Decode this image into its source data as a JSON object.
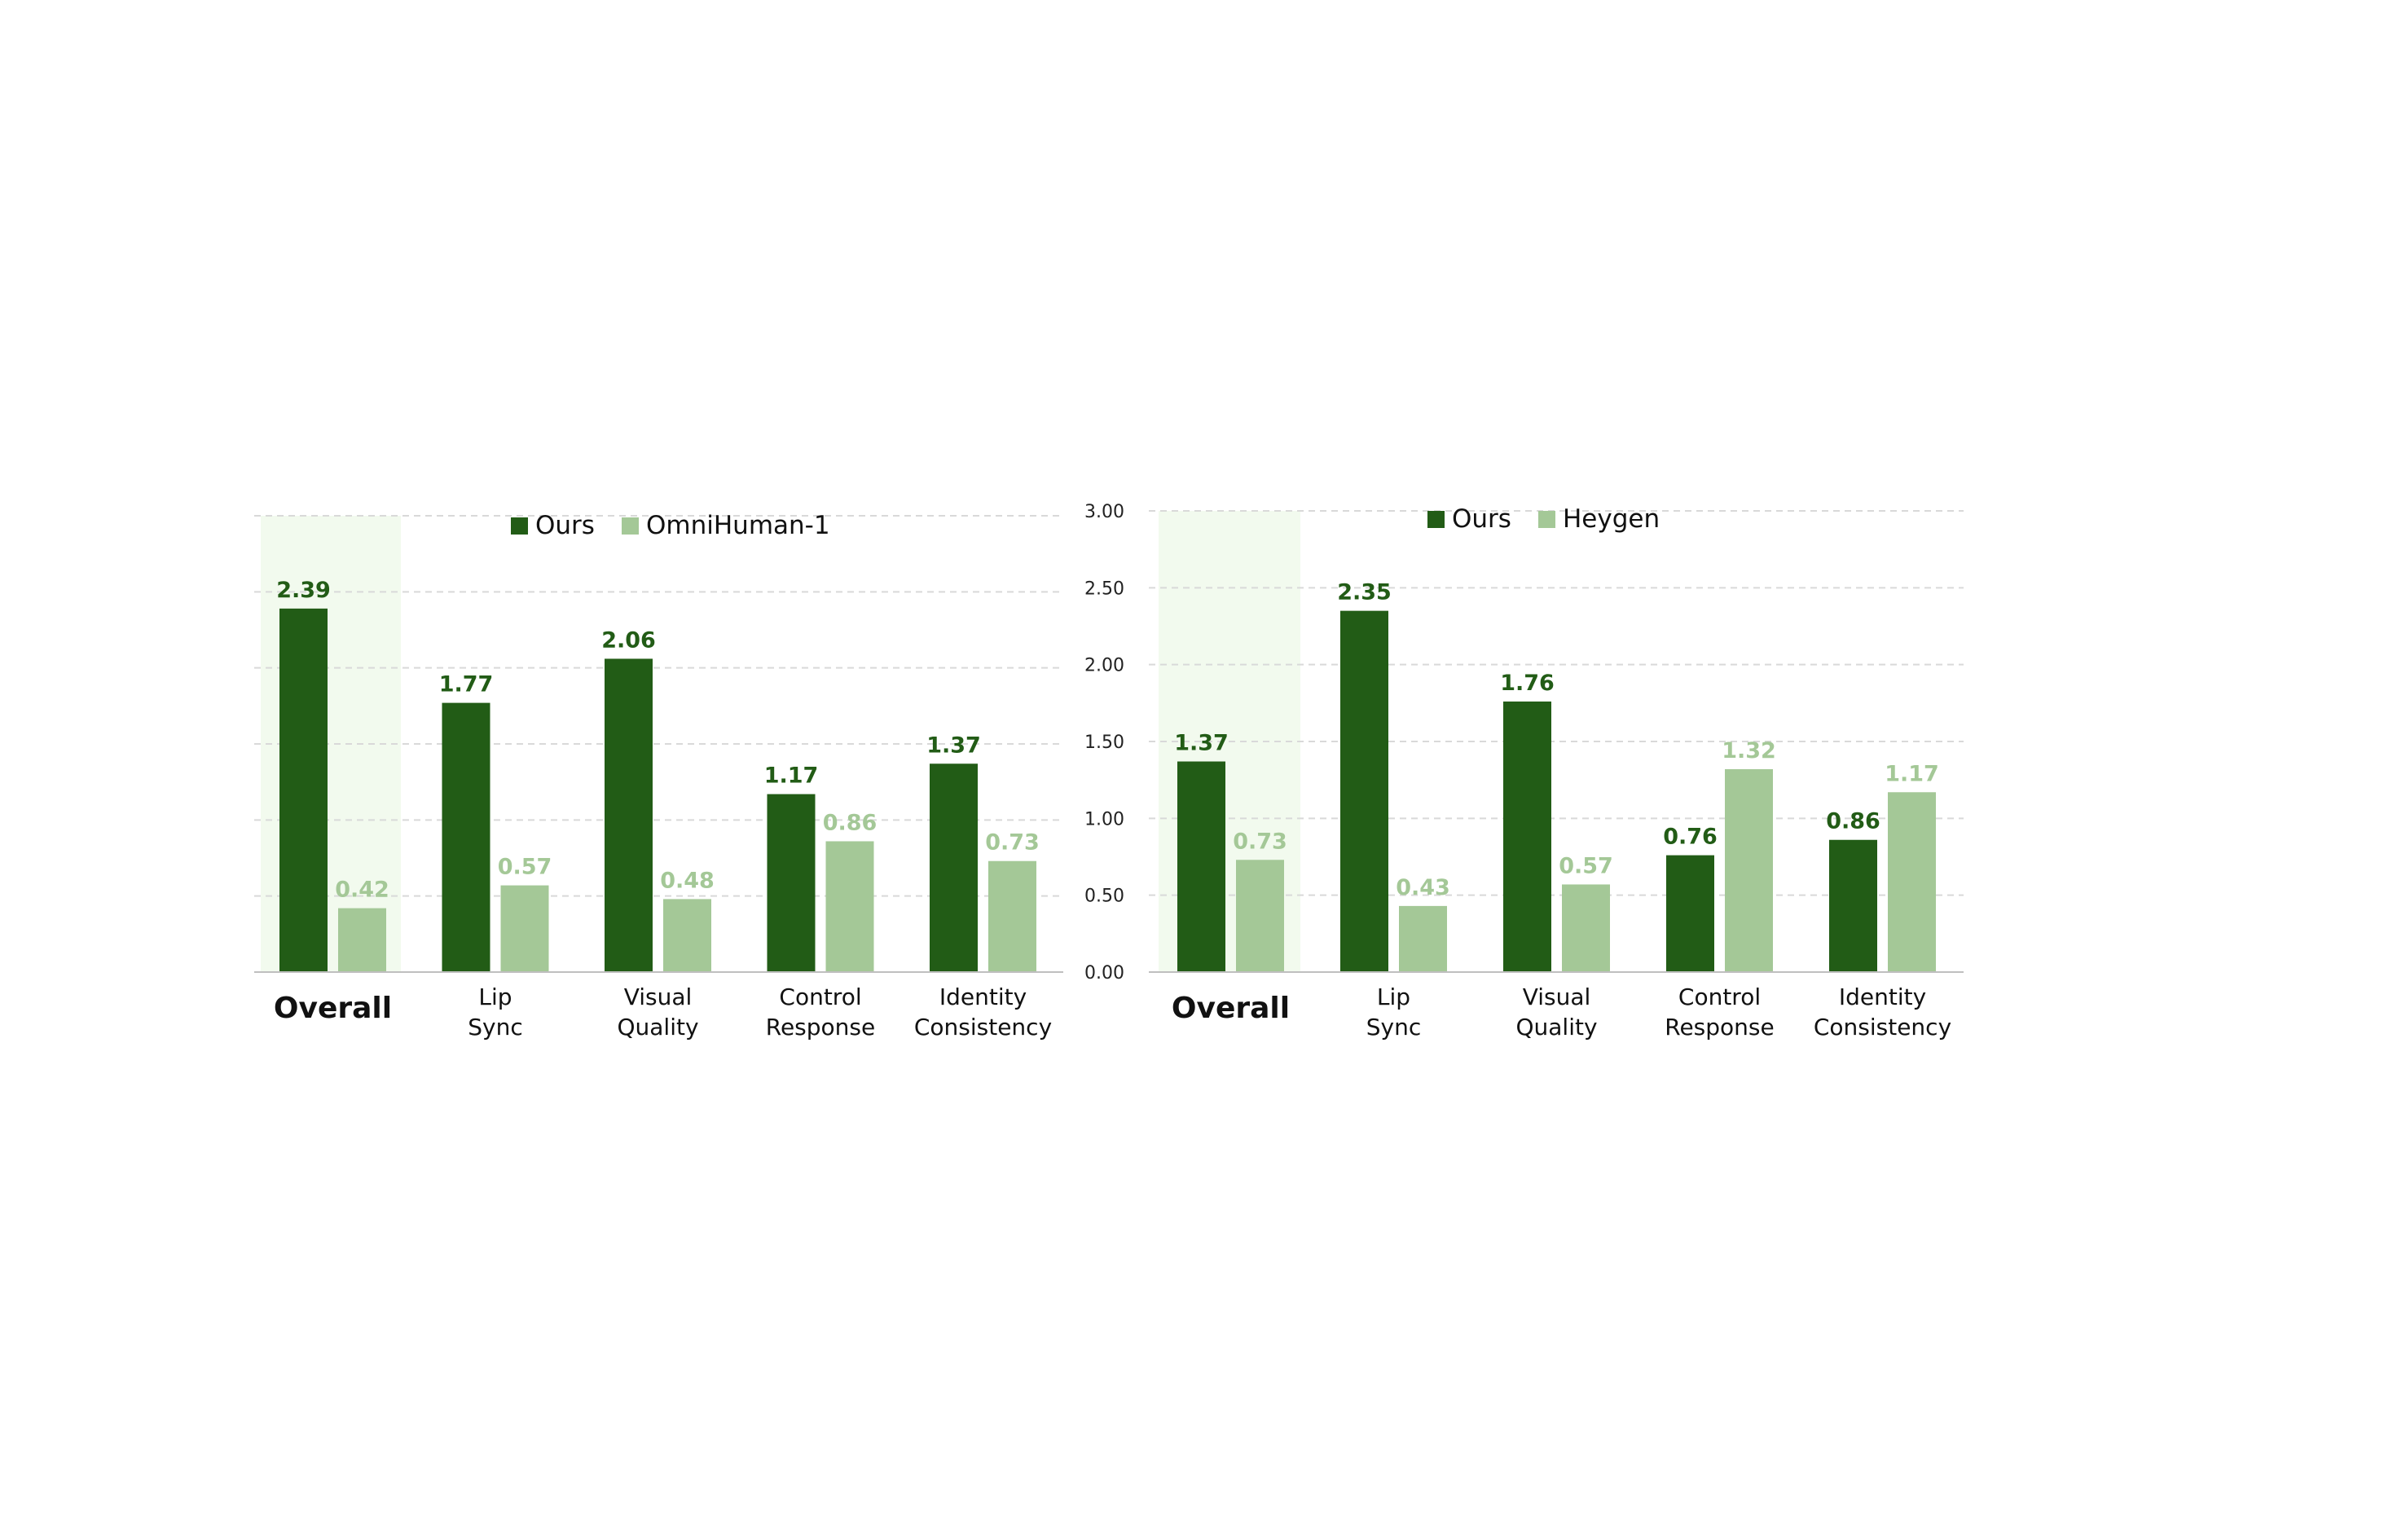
{
  "colors": {
    "ours": "#225C16",
    "baseline": "#A4C897",
    "highlight": "#F2FAEE",
    "grid": "#D9D9D9",
    "axis": "#BFBFBF"
  },
  "chart_data": [
    {
      "type": "bar",
      "categories": [
        [
          "Overall"
        ],
        [
          "Lip",
          "Sync"
        ],
        [
          "Visual",
          "Quality"
        ],
        [
          "Control",
          "Response"
        ],
        [
          "Identity",
          "Consistency"
        ]
      ],
      "highlight_category": "Overall",
      "series": [
        {
          "name": "Ours",
          "values": [
            2.39,
            1.77,
            2.06,
            1.17,
            1.37
          ]
        },
        {
          "name": "OmniHuman-1",
          "values": [
            0.42,
            0.57,
            0.48,
            0.86,
            0.73
          ]
        }
      ],
      "value_labels": [
        [
          "2.39",
          "1.77",
          "2.06",
          "1.17",
          "1.37"
        ],
        [
          "0.42",
          "0.57",
          "0.48",
          "0.86",
          "0.73"
        ]
      ],
      "ylim": [
        0,
        3
      ],
      "yticks": [],
      "grid": true,
      "legend": "top-center"
    },
    {
      "type": "bar",
      "categories": [
        [
          "Overall"
        ],
        [
          "Lip",
          "Sync"
        ],
        [
          "Visual",
          "Quality"
        ],
        [
          "Control",
          "Response"
        ],
        [
          "Identity",
          "Consistency"
        ]
      ],
      "highlight_category": "Overall",
      "series": [
        {
          "name": "Ours",
          "values": [
            1.37,
            2.35,
            1.76,
            0.76,
            0.86
          ]
        },
        {
          "name": "Heygen",
          "values": [
            0.73,
            0.43,
            0.57,
            1.32,
            1.17
          ]
        }
      ],
      "value_labels": [
        [
          "1.37",
          "2.35",
          "1.76",
          "0.76",
          "0.86"
        ],
        [
          "0.73",
          "0.43",
          "0.57",
          "1.32",
          "1.17"
        ]
      ],
      "ylim": [
        0,
        3
      ],
      "yticks": [
        "0.00",
        "0.50",
        "1.00",
        "1.50",
        "2.00",
        "2.50",
        "3.00"
      ],
      "grid": true,
      "legend": "top-center"
    }
  ]
}
